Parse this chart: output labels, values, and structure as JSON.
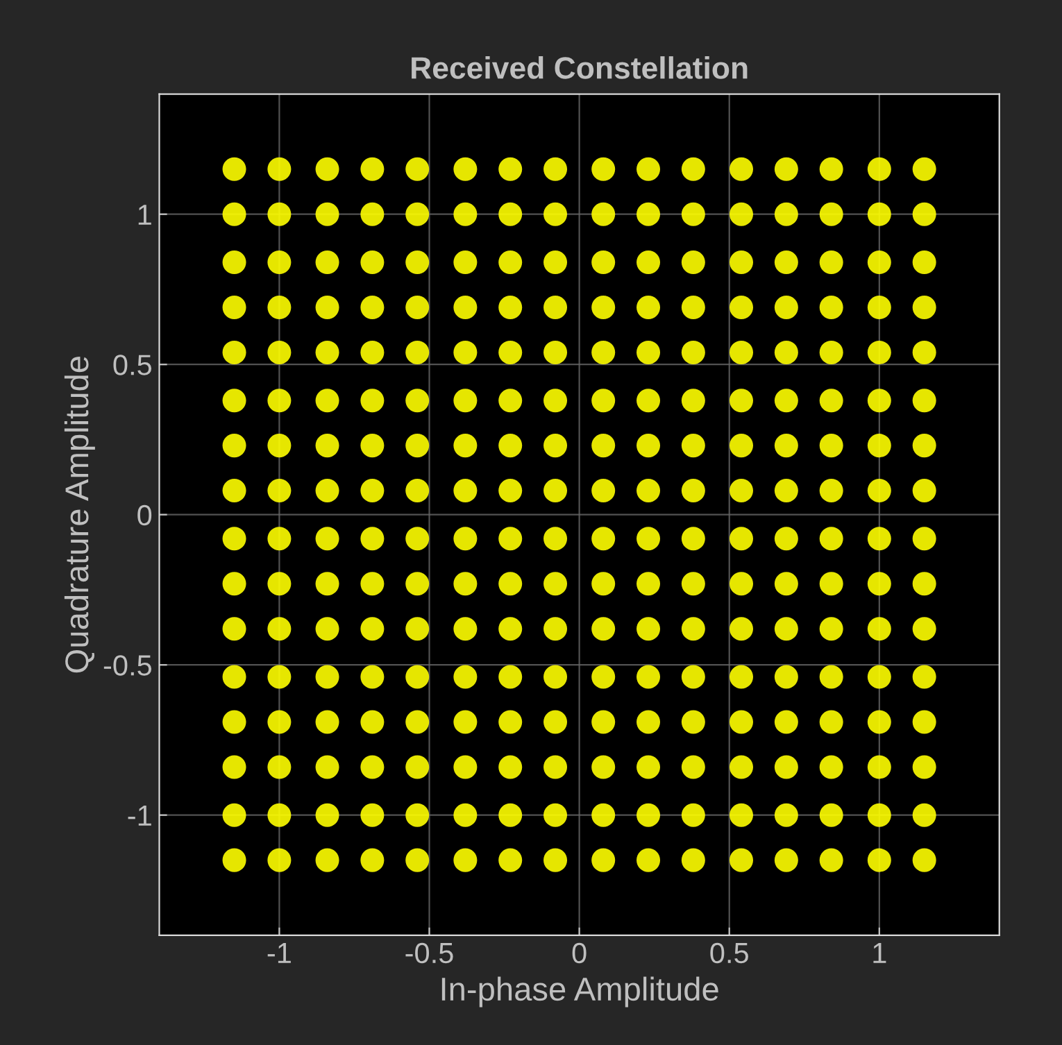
{
  "chart_data": {
    "type": "scatter",
    "title": "Received Constellation",
    "xlabel": "In-phase Amplitude",
    "ylabel": "Quadrature Amplitude",
    "xlim": [
      -1.4,
      1.4
    ],
    "ylim": [
      -1.4,
      1.4
    ],
    "xticks": [
      -1,
      -0.5,
      0,
      0.5,
      1
    ],
    "yticks": [
      -1,
      -0.5,
      0,
      0.5,
      1
    ],
    "grid": true,
    "marker": "circle",
    "series": [
      {
        "color": "#ffff00",
        "x": [
          -1.15,
          -1.0,
          -0.84,
          -0.69,
          -0.54,
          -0.38,
          -0.23,
          -0.08,
          0.08,
          0.23,
          0.38,
          0.54,
          0.69,
          0.84,
          1.0,
          1.15,
          -1.15,
          -1.0,
          -0.84,
          -0.69,
          -0.54,
          -0.38,
          -0.23,
          -0.08,
          0.08,
          0.23,
          0.38,
          0.54,
          0.69,
          0.84,
          1.0,
          1.15,
          -1.15,
          -1.0,
          -0.84,
          -0.69,
          -0.54,
          -0.38,
          -0.23,
          -0.08,
          0.08,
          0.23,
          0.38,
          0.54,
          0.69,
          0.84,
          1.0,
          1.15,
          -1.15,
          -1.0,
          -0.84,
          -0.69,
          -0.54,
          -0.38,
          -0.23,
          -0.08,
          0.08,
          0.23,
          0.38,
          0.54,
          0.69,
          0.84,
          1.0,
          1.15,
          -1.15,
          -1.0,
          -0.84,
          -0.69,
          -0.54,
          -0.38,
          -0.23,
          -0.08,
          0.08,
          0.23,
          0.38,
          0.54,
          0.69,
          0.84,
          1.0,
          1.15,
          -1.15,
          -1.0,
          -0.84,
          -0.69,
          -0.54,
          -0.38,
          -0.23,
          -0.08,
          0.08,
          0.23,
          0.38,
          0.54,
          0.69,
          0.84,
          1.0,
          1.15,
          -1.15,
          -1.0,
          -0.84,
          -0.69,
          -0.54,
          -0.38,
          -0.23,
          -0.08,
          0.08,
          0.23,
          0.38,
          0.54,
          0.69,
          0.84,
          1.0,
          1.15,
          -1.15,
          -1.0,
          -0.84,
          -0.69,
          -0.54,
          -0.38,
          -0.23,
          -0.08,
          0.08,
          0.23,
          0.38,
          0.54,
          0.69,
          0.84,
          1.0,
          1.15,
          -1.15,
          -1.0,
          -0.84,
          -0.69,
          -0.54,
          -0.38,
          -0.23,
          -0.08,
          0.08,
          0.23,
          0.38,
          0.54,
          0.69,
          0.84,
          1.0,
          1.15,
          -1.15,
          -1.0,
          -0.84,
          -0.69,
          -0.54,
          -0.38,
          -0.23,
          -0.08,
          0.08,
          0.23,
          0.38,
          0.54,
          0.69,
          0.84,
          1.0,
          1.15,
          -1.15,
          -1.0,
          -0.84,
          -0.69,
          -0.54,
          -0.38,
          -0.23,
          -0.08,
          0.08,
          0.23,
          0.38,
          0.54,
          0.69,
          0.84,
          1.0,
          1.15,
          -1.15,
          -1.0,
          -0.84,
          -0.69,
          -0.54,
          -0.38,
          -0.23,
          -0.08,
          0.08,
          0.23,
          0.38,
          0.54,
          0.69,
          0.84,
          1.0,
          1.15,
          -1.15,
          -1.0,
          -0.84,
          -0.69,
          -0.54,
          -0.38,
          -0.23,
          -0.08,
          0.08,
          0.23,
          0.38,
          0.54,
          0.69,
          0.84,
          1.0,
          1.15,
          -1.15,
          -1.0,
          -0.84,
          -0.69,
          -0.54,
          -0.38,
          -0.23,
          -0.08,
          0.08,
          0.23,
          0.38,
          0.54,
          0.69,
          0.84,
          1.0,
          1.15,
          -1.15,
          -1.0,
          -0.84,
          -0.69,
          -0.54,
          -0.38,
          -0.23,
          -0.08,
          0.08,
          0.23,
          0.38,
          0.54,
          0.69,
          0.84,
          1.0,
          1.15,
          -1.15,
          -1.0,
          -0.84,
          -0.69,
          -0.54,
          -0.38,
          -0.23,
          -0.08,
          0.08,
          0.23,
          0.38,
          0.54,
          0.69,
          0.84,
          1.0,
          1.15
        ],
        "values": [
          1.15,
          1.15,
          1.15,
          1.15,
          1.15,
          1.15,
          1.15,
          1.15,
          1.15,
          1.15,
          1.15,
          1.15,
          1.15,
          1.15,
          1.15,
          1.15,
          1.0,
          1.0,
          1.0,
          1.0,
          1.0,
          1.0,
          1.0,
          1.0,
          1.0,
          1.0,
          1.0,
          1.0,
          1.0,
          1.0,
          1.0,
          1.0,
          0.84,
          0.84,
          0.84,
          0.84,
          0.84,
          0.84,
          0.84,
          0.84,
          0.84,
          0.84,
          0.84,
          0.84,
          0.84,
          0.84,
          0.84,
          0.84,
          0.69,
          0.69,
          0.69,
          0.69,
          0.69,
          0.69,
          0.69,
          0.69,
          0.69,
          0.69,
          0.69,
          0.69,
          0.69,
          0.69,
          0.69,
          0.69,
          0.54,
          0.54,
          0.54,
          0.54,
          0.54,
          0.54,
          0.54,
          0.54,
          0.54,
          0.54,
          0.54,
          0.54,
          0.54,
          0.54,
          0.54,
          0.54,
          0.38,
          0.38,
          0.38,
          0.38,
          0.38,
          0.38,
          0.38,
          0.38,
          0.38,
          0.38,
          0.38,
          0.38,
          0.38,
          0.38,
          0.38,
          0.38,
          0.23,
          0.23,
          0.23,
          0.23,
          0.23,
          0.23,
          0.23,
          0.23,
          0.23,
          0.23,
          0.23,
          0.23,
          0.23,
          0.23,
          0.23,
          0.23,
          0.08,
          0.08,
          0.08,
          0.08,
          0.08,
          0.08,
          0.08,
          0.08,
          0.08,
          0.08,
          0.08,
          0.08,
          0.08,
          0.08,
          0.08,
          0.08,
          -0.08,
          -0.08,
          -0.08,
          -0.08,
          -0.08,
          -0.08,
          -0.08,
          -0.08,
          -0.08,
          -0.08,
          -0.08,
          -0.08,
          -0.08,
          -0.08,
          -0.08,
          -0.08,
          -0.23,
          -0.23,
          -0.23,
          -0.23,
          -0.23,
          -0.23,
          -0.23,
          -0.23,
          -0.23,
          -0.23,
          -0.23,
          -0.23,
          -0.23,
          -0.23,
          -0.23,
          -0.23,
          -0.38,
          -0.38,
          -0.38,
          -0.38,
          -0.38,
          -0.38,
          -0.38,
          -0.38,
          -0.38,
          -0.38,
          -0.38,
          -0.38,
          -0.38,
          -0.38,
          -0.38,
          -0.38,
          -0.54,
          -0.54,
          -0.54,
          -0.54,
          -0.54,
          -0.54,
          -0.54,
          -0.54,
          -0.54,
          -0.54,
          -0.54,
          -0.54,
          -0.54,
          -0.54,
          -0.54,
          -0.54,
          -0.69,
          -0.69,
          -0.69,
          -0.69,
          -0.69,
          -0.69,
          -0.69,
          -0.69,
          -0.69,
          -0.69,
          -0.69,
          -0.69,
          -0.69,
          -0.69,
          -0.69,
          -0.69,
          -0.84,
          -0.84,
          -0.84,
          -0.84,
          -0.84,
          -0.84,
          -0.84,
          -0.84,
          -0.84,
          -0.84,
          -0.84,
          -0.84,
          -0.84,
          -0.84,
          -0.84,
          -0.84,
          -1.0,
          -1.0,
          -1.0,
          -1.0,
          -1.0,
          -1.0,
          -1.0,
          -1.0,
          -1.0,
          -1.0,
          -1.0,
          -1.0,
          -1.0,
          -1.0,
          -1.0,
          -1.0,
          -1.15,
          -1.15,
          -1.15,
          -1.15,
          -1.15,
          -1.15,
          -1.15,
          -1.15,
          -1.15,
          -1.15,
          -1.15,
          -1.15,
          -1.15,
          -1.15,
          -1.15,
          -1.15
        ]
      }
    ]
  }
}
